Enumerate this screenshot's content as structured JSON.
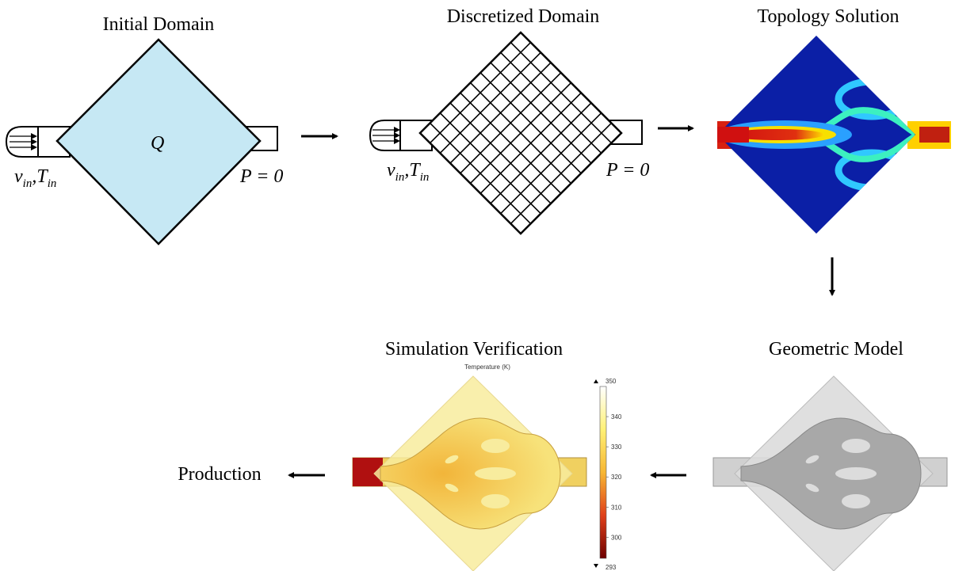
{
  "panels": [
    {
      "title": "Initial Domain",
      "source": "Q",
      "inlet": {
        "v": "v",
        "v_sub": "in",
        "sep": ",",
        "T": "T",
        "T_sub": "in"
      },
      "outlet": "P = 0"
    },
    {
      "title": "Discretized Domain",
      "inlet": {
        "v": "v",
        "v_sub": "in",
        "sep": ",",
        "T": "T",
        "T_sub": "in"
      },
      "outlet": "P = 0"
    },
    {
      "title": "Topology Solution"
    },
    {
      "title": "Geometric Model"
    },
    {
      "title": "Simulation Verification",
      "colorbar": {
        "label": "Temperature (K)",
        "max": 350,
        "ticks": [
          340,
          330,
          320,
          310,
          300
        ],
        "min": 293
      }
    },
    {
      "title": "Production"
    }
  ]
}
